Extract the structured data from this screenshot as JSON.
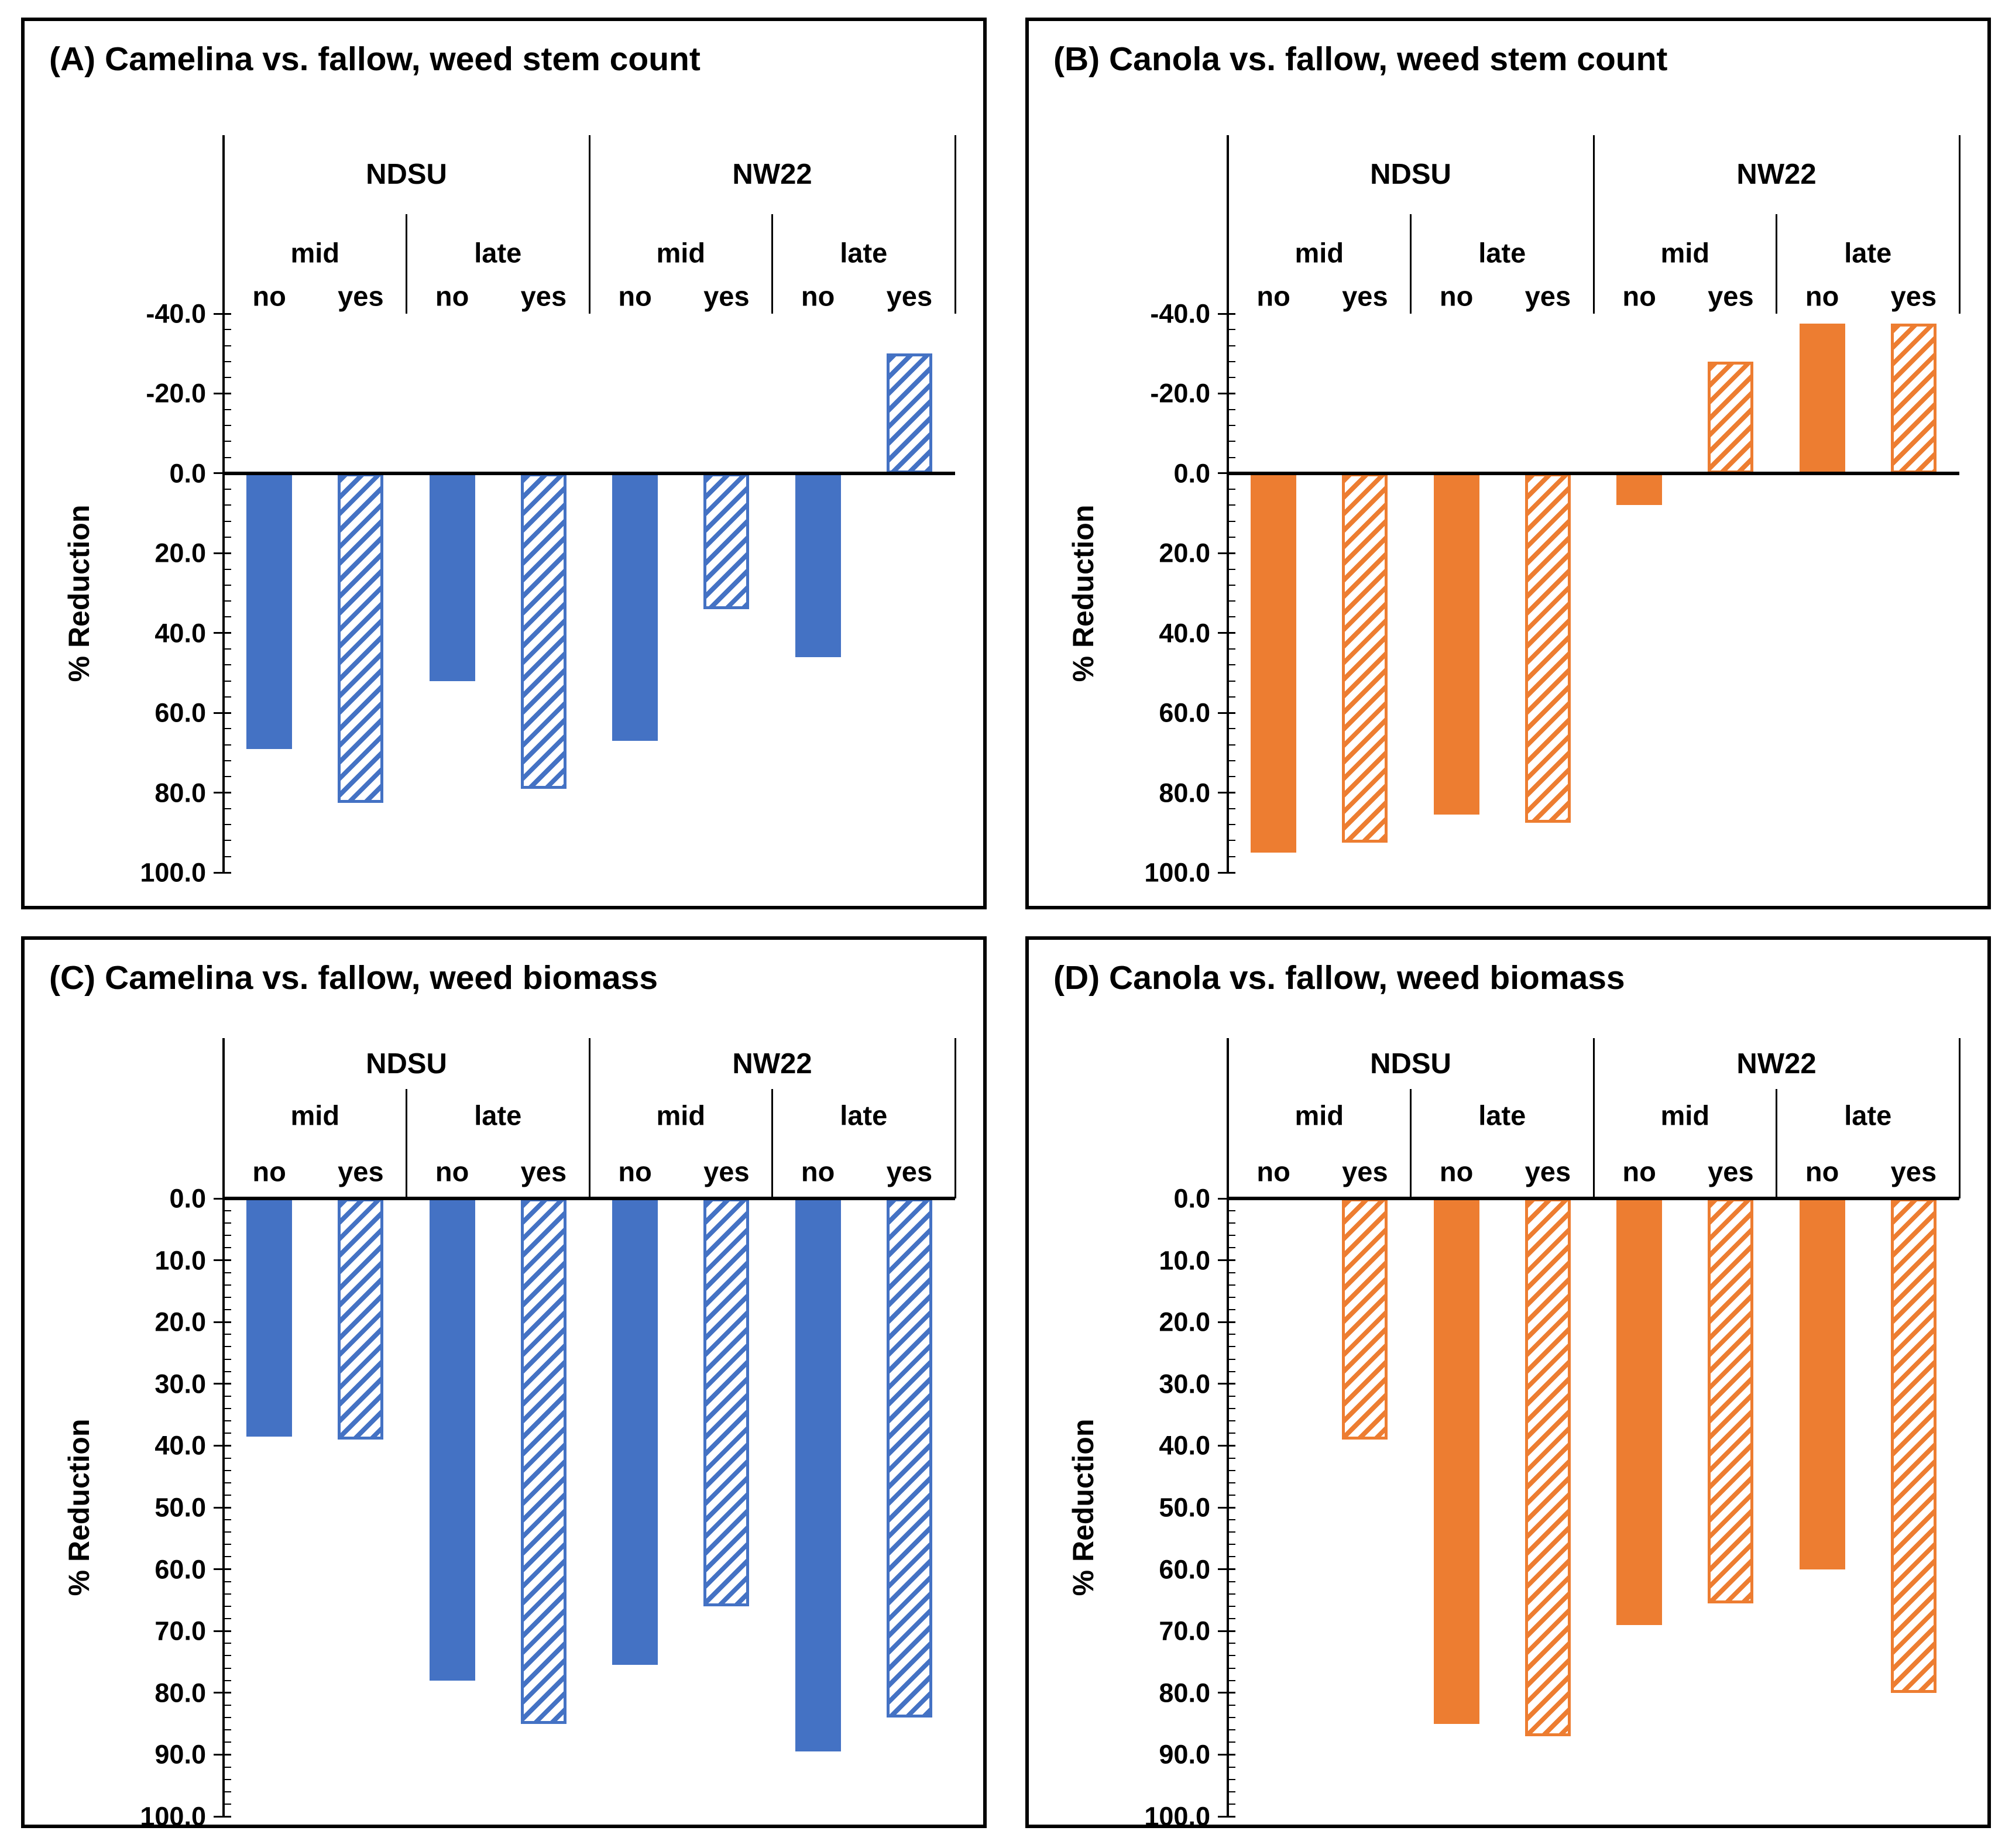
{
  "figure": {
    "background": "#ffffff",
    "series_style_note": {
      "no": "solid fill",
      "yes": "hatched diagonal fill"
    }
  },
  "chart_data": [
    {
      "type": "bar",
      "panel": "A",
      "title": "(A) Camelina vs. fallow, weed stem count",
      "color": "#4472C4",
      "ylabel": "% Reduction",
      "groups": [
        "NDSU",
        "NW22"
      ],
      "subgroups": [
        "mid",
        "late"
      ],
      "treatments": [
        "no",
        "yes"
      ],
      "axis": {
        "min": -40,
        "max": 100,
        "major_step": 20,
        "minor_step": 4,
        "inverted": true,
        "tick_labels": [
          "-40.0",
          "-20.0",
          "0.0",
          "20.0",
          "40.0",
          "60.0",
          "80.0",
          "100.0"
        ]
      },
      "categories": [
        "NDSU-mid-no",
        "NDSU-mid-yes",
        "NDSU-late-no",
        "NDSU-late-yes",
        "NW22-mid-no",
        "NW22-mid-yes",
        "NW22-late-no",
        "NW22-late-yes"
      ],
      "values": [
        69,
        82.5,
        52,
        79,
        67,
        34,
        46,
        -30
      ]
    },
    {
      "type": "bar",
      "panel": "B",
      "title": "(B) Canola vs. fallow, weed stem count",
      "color": "#ED7D31",
      "ylabel": "% Reduction",
      "groups": [
        "NDSU",
        "NW22"
      ],
      "subgroups": [
        "mid",
        "late"
      ],
      "treatments": [
        "no",
        "yes"
      ],
      "axis": {
        "min": -40,
        "max": 100,
        "major_step": 20,
        "minor_step": 4,
        "inverted": true,
        "tick_labels": [
          "-40.0",
          "-20.0",
          "0.0",
          "20.0",
          "40.0",
          "60.0",
          "80.0",
          "100.0"
        ]
      },
      "categories": [
        "NDSU-mid-no",
        "NDSU-mid-yes",
        "NDSU-late-no",
        "NDSU-late-yes",
        "NW22-mid-no",
        "NW22-mid-yes",
        "NW22-late-no",
        "NW22-late-yes"
      ],
      "values": [
        95,
        92.5,
        85.5,
        87.5,
        8,
        -28,
        -37.5,
        -37.5
      ]
    },
    {
      "type": "bar",
      "panel": "C",
      "title": "(C) Camelina vs. fallow, weed biomass",
      "color": "#4472C4",
      "ylabel": "% Reduction",
      "groups": [
        "NDSU",
        "NW22"
      ],
      "subgroups": [
        "mid",
        "late"
      ],
      "treatments": [
        "no",
        "yes"
      ],
      "axis": {
        "min": 0,
        "max": 100,
        "major_step": 10,
        "minor_step": 2,
        "inverted": true,
        "tick_labels": [
          "0.0",
          "10.0",
          "20.0",
          "30.0",
          "40.0",
          "50.0",
          "60.0",
          "70.0",
          "80.0",
          "90.0",
          "100.0"
        ]
      },
      "categories": [
        "NDSU-mid-no",
        "NDSU-mid-yes",
        "NDSU-late-no",
        "NDSU-late-yes",
        "NW22-mid-no",
        "NW22-mid-yes",
        "NW22-late-no",
        "NW22-late-yes"
      ],
      "values": [
        38.5,
        39,
        78,
        85,
        75.5,
        66,
        89.5,
        84
      ]
    },
    {
      "type": "bar",
      "panel": "D",
      "title": "(D) Canola vs. fallow, weed biomass",
      "color": "#ED7D31",
      "ylabel": "% Reduction",
      "groups": [
        "NDSU",
        "NW22"
      ],
      "subgroups": [
        "mid",
        "late"
      ],
      "treatments": [
        "no",
        "yes"
      ],
      "axis": {
        "min": 0,
        "max": 100,
        "major_step": 10,
        "minor_step": 2,
        "inverted": true,
        "tick_labels": [
          "0.0",
          "10.0",
          "20.0",
          "30.0",
          "40.0",
          "50.0",
          "60.0",
          "70.0",
          "80.0",
          "90.0",
          "100.0"
        ]
      },
      "categories": [
        "NDSU-mid-no",
        "NDSU-mid-yes",
        "NDSU-late-no",
        "NDSU-late-yes",
        "NW22-mid-no",
        "NW22-mid-yes",
        "NW22-late-no",
        "NW22-late-yes"
      ],
      "values": [
        null,
        39,
        85,
        87,
        69,
        65.5,
        60,
        80
      ]
    }
  ]
}
